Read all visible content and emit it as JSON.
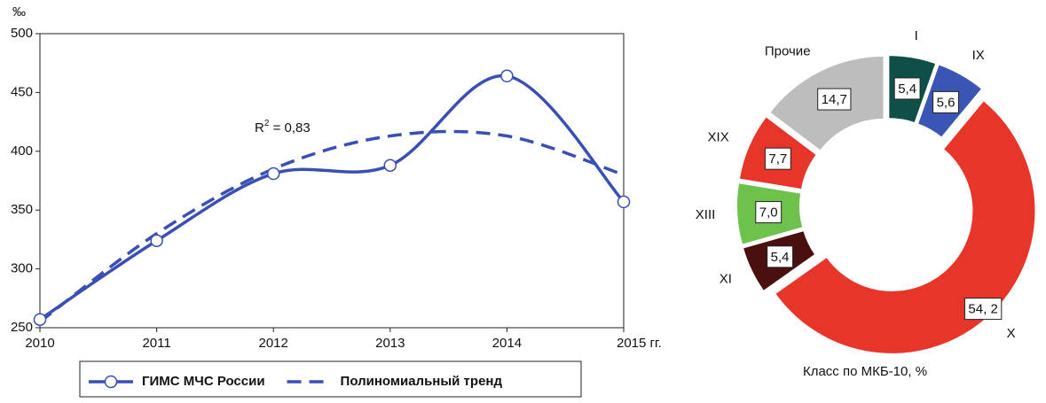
{
  "chart_data": [
    {
      "type": "line",
      "y_label": "‰",
      "x": [
        2010,
        2011,
        2012,
        2013,
        2014,
        2015
      ],
      "xlim": [
        2010,
        2015
      ],
      "xticks": [
        2010,
        2011,
        2012,
        2013,
        2014,
        {
          "value": 2015,
          "label": "2015 гг."
        }
      ],
      "ylim": [
        250,
        500
      ],
      "yticks": [
        250,
        300,
        350,
        400,
        450,
        500
      ],
      "annotation": {
        "base": "R",
        "sup": "2",
        "rest": " = 0,83"
      },
      "series": [
        {
          "name": "ГИМС МЧС России",
          "color": "#3a4fb5",
          "style": "solid",
          "markers": true,
          "values": [
            257,
            324,
            381,
            388,
            464,
            357
          ]
        },
        {
          "name": "Полиномиальный тренд",
          "color": "#3a4fb5",
          "style": "dashed",
          "markers": false,
          "values": [
            255,
            330,
            385,
            413,
            413,
            380
          ]
        }
      ]
    },
    {
      "type": "donut",
      "title": "Класс по МКБ-10, %",
      "categories": [
        "I",
        "IX",
        "X",
        "XI",
        "XIII",
        "XIX",
        "Прочие"
      ],
      "values": [
        5.4,
        5.6,
        54.2,
        5.4,
        7.0,
        7.7,
        14.7
      ],
      "value_labels": [
        "5,4",
        "5,6",
        "54, 2",
        "5,4",
        "7,0",
        "7,7",
        "14,7"
      ],
      "colors": [
        "#0f4f47",
        "#3a55b4",
        "#e8352a",
        "#4a1010",
        "#6cc24a",
        "#e8352a",
        "#bdbdbd"
      ]
    }
  ]
}
